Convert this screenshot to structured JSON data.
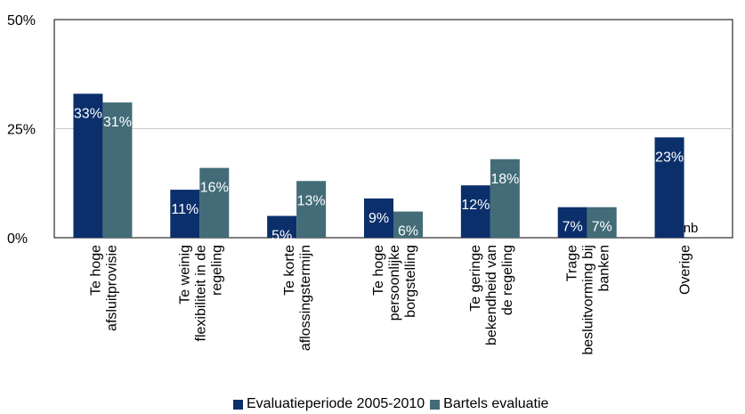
{
  "chart_data": {
    "type": "bar",
    "categories": [
      [
        "Te hoge",
        "afsluitprovisie"
      ],
      [
        "Te weinig",
        "flexibiliteit in de",
        "regeling"
      ],
      [
        "Te korte",
        "aflossingstermijn"
      ],
      [
        "Te hoge",
        "persoonlijke",
        "borgstelling"
      ],
      [
        "Te geringe",
        "bekendheid van",
        "de regeling"
      ],
      [
        "Trage",
        "besluitvorming bij",
        "banken"
      ],
      [
        "Overige"
      ]
    ],
    "series": [
      {
        "name": "Evaluatieperiode 2005-2010",
        "color": "#0b2f6b",
        "values": [
          33,
          11,
          5,
          9,
          12,
          7,
          23
        ],
        "labels": [
          "33%",
          "11%",
          "5%",
          "9%",
          "12%",
          "7%",
          "23%"
        ]
      },
      {
        "name": "Bartels evaluatie",
        "color": "#436c78",
        "values": [
          31,
          16,
          13,
          6,
          18,
          7,
          null
        ],
        "labels": [
          "31%",
          "16%",
          "13%",
          "6%",
          "18%",
          "7%",
          "nb"
        ]
      }
    ],
    "yticks": [
      "0%",
      "25%",
      "50%"
    ],
    "ylim": [
      0,
      50
    ],
    "grid": true,
    "legend": "bottom",
    "title": "",
    "xlabel": "",
    "ylabel": ""
  }
}
